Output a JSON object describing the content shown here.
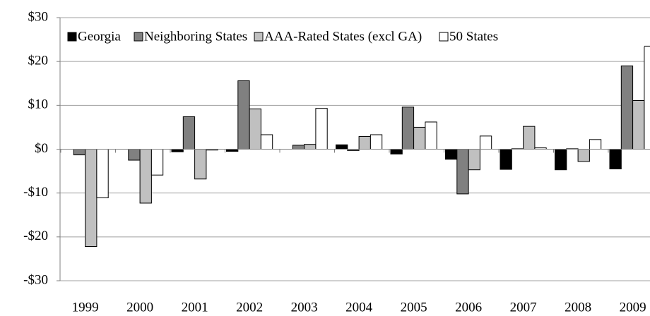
{
  "chart_data": {
    "type": "bar",
    "categories": [
      "1999",
      "2000",
      "2001",
      "2002",
      "2003",
      "2004",
      "2005",
      "2006",
      "2007",
      "2008",
      "2009"
    ],
    "series": [
      {
        "name": "Georgia",
        "color": "#000000",
        "values": [
          0,
          0,
          -0.6,
          -0.5,
          0,
          1.0,
          -1.1,
          -2.3,
          -4.6,
          -4.7,
          -4.5
        ]
      },
      {
        "name": "Neighboring States",
        "color": "#808080",
        "values": [
          -1.3,
          -2.5,
          7.4,
          15.6,
          0.9,
          -0.3,
          9.6,
          -10.2,
          0.1,
          0.1,
          19.0
        ]
      },
      {
        "name": "AAA-Rated States (excl GA)",
        "color": "#c0c0c0",
        "values": [
          -22.2,
          -12.3,
          -6.8,
          9.2,
          1.1,
          2.9,
          5.0,
          -4.7,
          5.2,
          -2.8,
          11.1
        ]
      },
      {
        "name": "50 States",
        "color": "#ffffff",
        "values": [
          -11.1,
          -5.9,
          -0.2,
          3.3,
          9.3,
          3.3,
          6.2,
          3.0,
          0.3,
          2.2,
          23.5
        ]
      }
    ],
    "ylim": [
      -30,
      30
    ],
    "yticks": [
      {
        "value": -30,
        "label": "-$30"
      },
      {
        "value": -20,
        "label": "-$20"
      },
      {
        "value": -10,
        "label": "-$10"
      },
      {
        "value": 0,
        "label": "$0"
      },
      {
        "value": 10,
        "label": "$10"
      },
      {
        "value": 20,
        "label": "$20"
      },
      {
        "value": 30,
        "label": "$30"
      }
    ],
    "grid": true,
    "legend": "top"
  }
}
